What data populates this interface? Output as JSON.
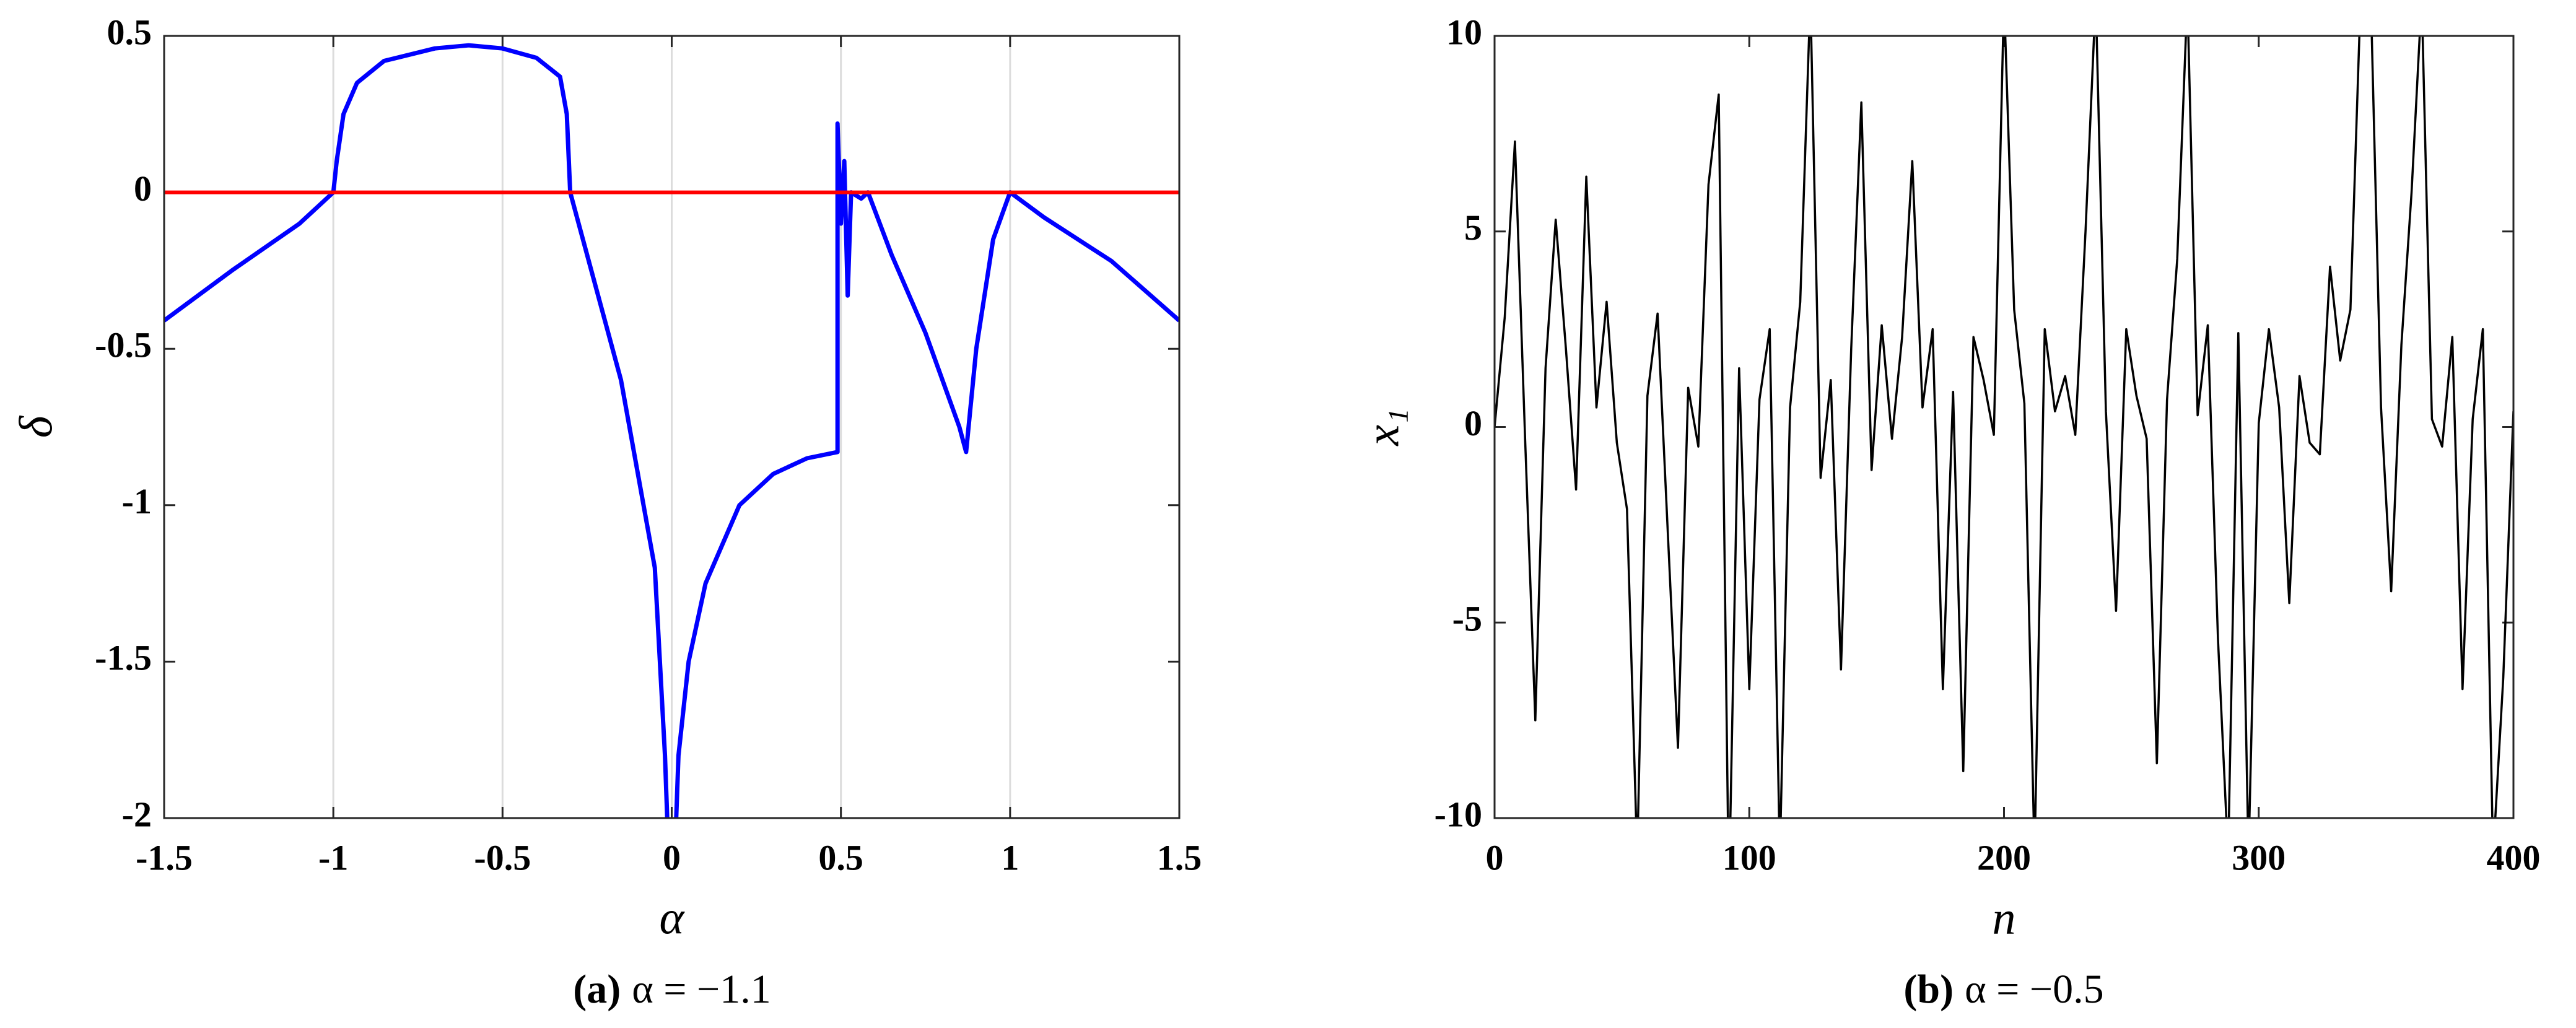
{
  "chart_data": [
    {
      "type": "line",
      "caption_label": "(a)",
      "caption": "α = −1.1",
      "x_label": "α",
      "y_label": "δ",
      "xlim": [
        -1.5,
        1.5
      ],
      "ylim": [
        -2,
        0.5
      ],
      "xticks": [
        -1.5,
        -1,
        -0.5,
        0,
        0.5,
        1,
        1.5
      ],
      "yticks": [
        -2,
        -1.5,
        -1,
        -0.5,
        0,
        0.5
      ],
      "grid": "x",
      "series": [
        {
          "color": "#0000ff",
          "x": [
            -1.5,
            -1.3,
            -1.1,
            -1.0,
            -0.99,
            -0.97,
            -0.93,
            -0.85,
            -0.7,
            -0.6,
            -0.5,
            -0.4,
            -0.33,
            -0.31,
            -0.3,
            -0.25,
            -0.15,
            -0.05,
            -0.02,
            0,
            0.02,
            0.05,
            0.1,
            0.2,
            0.3,
            0.4,
            0.49,
            0.49,
            0.5,
            0.51,
            0.52,
            0.53,
            0.56,
            0.58,
            0.65,
            0.75,
            0.85,
            0.87,
            0.9,
            0.95,
            1.0,
            1.1,
            1.3,
            1.5
          ],
          "values": [
            -0.41,
            -0.25,
            -0.1,
            0,
            0.1,
            0.25,
            0.35,
            0.42,
            0.46,
            0.47,
            0.46,
            0.43,
            0.37,
            0.25,
            0,
            -0.2,
            -0.6,
            -1.2,
            -1.8,
            -2.4,
            -1.8,
            -1.5,
            -1.25,
            -1.0,
            -0.9,
            -0.85,
            -0.83,
            0.22,
            -0.1,
            0.1,
            -0.33,
            0,
            -0.02,
            0,
            -0.2,
            -0.45,
            -0.75,
            -0.83,
            -0.5,
            -0.15,
            0,
            -0.08,
            -0.22,
            -0.41
          ]
        },
        {
          "color": "#ff0000",
          "x": [
            -1.5,
            1.5
          ],
          "values": [
            0,
            0
          ]
        }
      ]
    },
    {
      "type": "line",
      "caption_label": "(b)",
      "caption": "α = −0.5",
      "x_label": "n",
      "y_label": "x₁",
      "xlim": [
        0,
        400
      ],
      "ylim": [
        -10,
        10
      ],
      "xticks": [
        0,
        100,
        200,
        300,
        400
      ],
      "yticks": [
        -10,
        -5,
        0,
        5,
        10
      ],
      "grid": "none",
      "series": [
        {
          "color": "#000000",
          "x": [
            0,
            4,
            8,
            12,
            16,
            20,
            24,
            28,
            32,
            36,
            40,
            44,
            48,
            52,
            56,
            60,
            64,
            68,
            72,
            76,
            80,
            84,
            88,
            92,
            96,
            100,
            104,
            108,
            112,
            116,
            120,
            124,
            128,
            132,
            136,
            140,
            144,
            148,
            152,
            156,
            160,
            164,
            168,
            172,
            176,
            180,
            184,
            188,
            192,
            196,
            200,
            204,
            208,
            212,
            216,
            220,
            224,
            228,
            232,
            236,
            240,
            244,
            248,
            252,
            256,
            260,
            264,
            268,
            272,
            276,
            280,
            284,
            288,
            292,
            296,
            300,
            304,
            308,
            312,
            316,
            320,
            324,
            328,
            332,
            336,
            340,
            344,
            348,
            352,
            356,
            360,
            364,
            368,
            372,
            376,
            380,
            384,
            388,
            392,
            396,
            400
          ],
          "values": [
            0,
            2.8,
            7.3,
            -0.3,
            -7.5,
            1.5,
            5.3,
            2,
            -1.6,
            6.4,
            0.5,
            3.2,
            -0.4,
            -2.1,
            -11,
            0.8,
            2.9,
            -2.7,
            -8.2,
            1,
            -0.5,
            6.2,
            8.5,
            -12,
            1.5,
            -6.7,
            0.7,
            2.5,
            -11,
            0.5,
            3.2,
            11,
            -1.3,
            1.2,
            -6.2,
            2,
            8.3,
            -1.1,
            2.6,
            -0.3,
            2.3,
            6.8,
            0.5,
            2.5,
            -6.7,
            0.9,
            -8.8,
            2.3,
            1.2,
            -0.2,
            11,
            3,
            0.6,
            -11,
            2.5,
            0.4,
            1.3,
            -0.2,
            5,
            11,
            0.4,
            -4.7,
            2.5,
            0.8,
            -0.3,
            -8.6,
            0.7,
            4.3,
            11,
            0.3,
            2.6,
            -5.4,
            -11,
            2.4,
            -11,
            0.1,
            2.5,
            0.5,
            -4.5,
            1.3,
            -0.4,
            -0.7,
            4.1,
            1.7,
            3,
            11,
            11,
            0.5,
            -4.2,
            2.1,
            6,
            11,
            0.2,
            -0.5,
            2.3,
            -6.7,
            0.2,
            2.5,
            -11,
            -6.4,
            0.4
          ]
        }
      ]
    }
  ]
}
